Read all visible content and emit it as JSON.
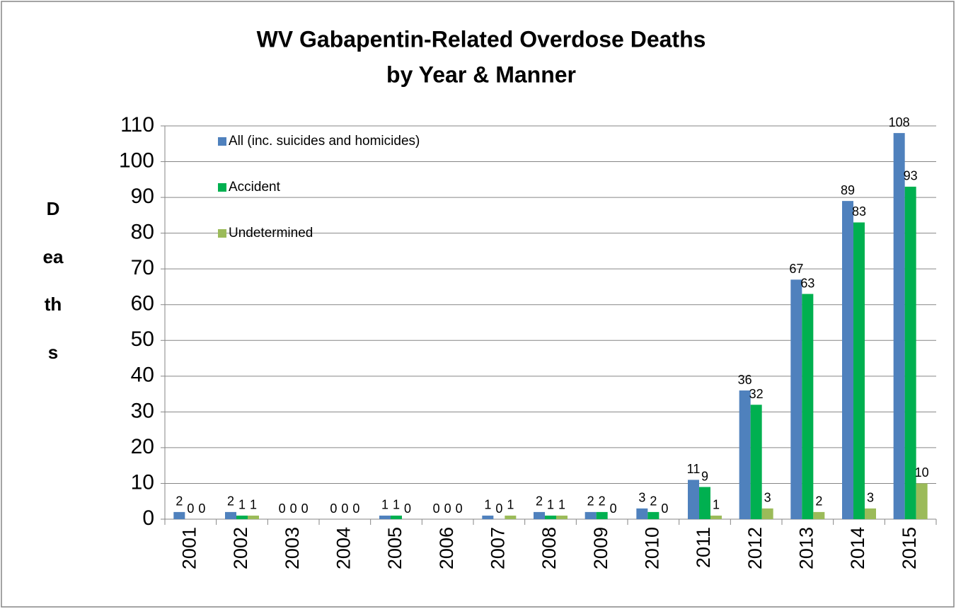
{
  "chart_data": {
    "type": "bar",
    "title": [
      "WV  Gabapentin-Related Overdose Deaths",
      "by Year & Manner"
    ],
    "y_label": "Deaths",
    "categories": [
      "2001",
      "2002",
      "2003",
      "2004",
      "2005",
      "2006",
      "2007",
      "2008",
      "2009",
      "2010",
      "2011",
      "2012",
      "2013",
      "2014",
      "2015"
    ],
    "series": [
      {
        "name": "All (inc. suicides and homicides)",
        "color": "#4f81bd",
        "values": [
          2,
          2,
          0,
          0,
          1,
          0,
          1,
          2,
          2,
          3,
          11,
          36,
          67,
          89,
          108
        ]
      },
      {
        "name": "Accident",
        "color": "#00b050",
        "values": [
          0,
          1,
          0,
          0,
          1,
          0,
          0,
          1,
          2,
          2,
          9,
          32,
          63,
          83,
          93
        ]
      },
      {
        "name": "Undetermined",
        "color": "#9bbb59",
        "values": [
          0,
          1,
          0,
          0,
          0,
          0,
          1,
          1,
          0,
          0,
          1,
          3,
          2,
          3,
          10
        ]
      }
    ],
    "ylim": [
      0,
      110
    ],
    "yticks": [
      0,
      10,
      20,
      30,
      40,
      50,
      60,
      70,
      80,
      90,
      100,
      110
    ],
    "grid": true,
    "legend": "top-left"
  }
}
